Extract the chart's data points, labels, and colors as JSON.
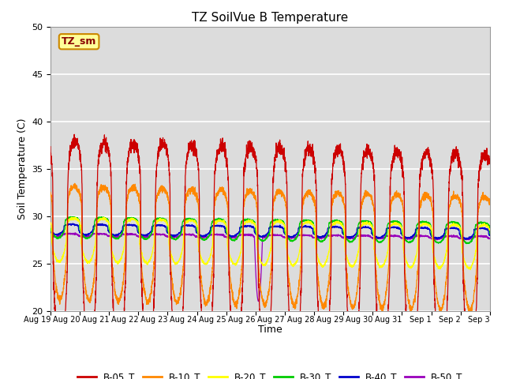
{
  "title": "TZ SoilVue B Temperature",
  "ylabel": "Soil Temperature (C)",
  "xlabel": "Time",
  "ylim": [
    20,
    50
  ],
  "yticks": [
    20,
    25,
    30,
    35,
    40,
    45,
    50
  ],
  "bg_color": "#dcdcdc",
  "fig_color": "#ffffff",
  "series_names": [
    "B-05_T",
    "B-10_T",
    "B-20_T",
    "B-30_T",
    "B-40_T",
    "B-50_T"
  ],
  "series_colors": [
    "#cc0000",
    "#ff8800",
    "#ffff00",
    "#00cc00",
    "#0000cc",
    "#9900bb"
  ],
  "series_base": [
    26.5,
    27.2,
    27.5,
    28.8,
    28.6,
    28.0
  ],
  "series_amp": [
    11.5,
    6.0,
    2.3,
    1.1,
    0.55,
    0.15
  ],
  "series_phase": [
    0.0,
    0.08,
    0.28,
    0.55,
    0.8,
    1.0
  ],
  "series_trend": [
    -0.1,
    -0.08,
    -0.05,
    -0.04,
    -0.03,
    -0.02
  ],
  "n_days": 15,
  "start_day": 19,
  "label_text": "TZ_sm",
  "spike_sharpness": 6.0,
  "purple_spike_day": 7.1
}
